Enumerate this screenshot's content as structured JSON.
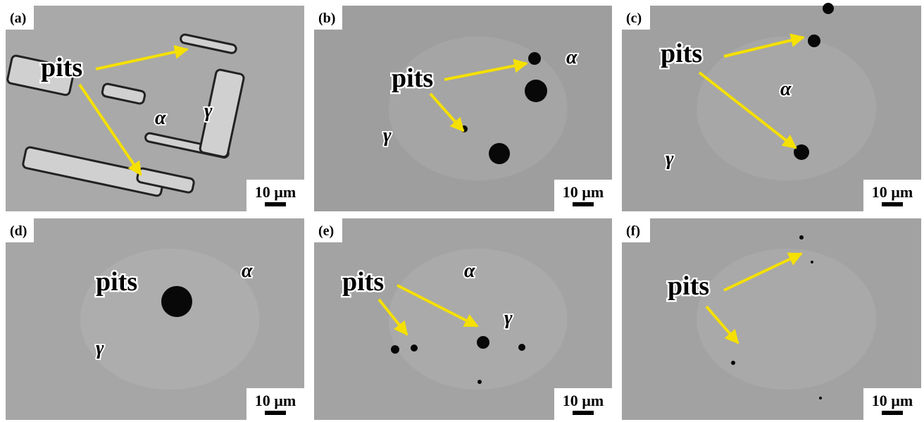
{
  "panels": [
    {
      "label": "(a)",
      "pits": "pits",
      "alpha": "α",
      "gamma": "γ",
      "scale_bar": "10 µm"
    },
    {
      "label": "(b)",
      "pits": "pits",
      "alpha": "α",
      "gamma": "γ",
      "scale_bar": "10 µm"
    },
    {
      "label": "(c)",
      "pits": "pits",
      "alpha": "α",
      "gamma": "γ",
      "scale_bar": "10 µm"
    },
    {
      "label": "(d)",
      "pits": "pits",
      "alpha": "α",
      "gamma": "γ",
      "scale_bar": "10 µm"
    },
    {
      "label": "(e)",
      "pits": "pits",
      "alpha": "α",
      "gamma": "γ",
      "scale_bar": "10 µm"
    },
    {
      "label": "(f)",
      "pits": "pits",
      "scale_bar": "10 µm"
    }
  ]
}
